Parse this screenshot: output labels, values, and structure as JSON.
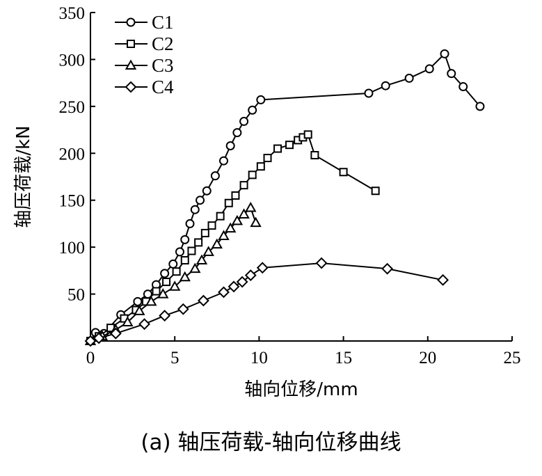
{
  "caption": "(a) 轴压荷载-轴向位移曲线",
  "chart_data": {
    "type": "line",
    "title": "",
    "xlabel": "轴向位移/mm",
    "ylabel": "轴压荷载/kN",
    "xlim": [
      0,
      25
    ],
    "ylim": [
      0,
      350
    ],
    "xticks": [
      0,
      5,
      10,
      15,
      20,
      25
    ],
    "yticks": [
      50,
      100,
      150,
      200,
      250,
      300,
      350
    ],
    "legend_position": "top-left",
    "grid": false,
    "series": [
      {
        "name": "C1",
        "marker": "circle",
        "x": [
          0,
          0.3,
          0.8,
          1.8,
          2.8,
          3.4,
          3.9,
          4.4,
          4.9,
          5.3,
          5.6,
          5.9,
          6.2,
          6.5,
          6.9,
          7.4,
          7.9,
          8.3,
          8.7,
          9.1,
          9.6,
          10.1,
          16.5,
          17.5,
          18.9,
          20.1,
          21.0,
          21.4,
          22.1,
          23.1
        ],
        "y": [
          0,
          9,
          8,
          28,
          42,
          50,
          60,
          72,
          82,
          95,
          108,
          125,
          140,
          150,
          160,
          176,
          192,
          208,
          222,
          234,
          246,
          257,
          264,
          272,
          280,
          290,
          306,
          285,
          271,
          250
        ]
      },
      {
        "name": "C2",
        "marker": "square",
        "x": [
          0,
          0.5,
          1.2,
          2.0,
          2.7,
          3.3,
          3.9,
          4.5,
          5.1,
          5.6,
          6.0,
          6.4,
          6.8,
          7.2,
          7.7,
          8.2,
          8.6,
          9.1,
          9.6,
          10.1,
          10.5,
          11.1,
          11.8,
          12.3,
          12.6,
          12.9,
          13.3,
          15.0,
          16.9
        ],
        "y": [
          0,
          5,
          14,
          24,
          33,
          42,
          53,
          63,
          74,
          86,
          96,
          105,
          115,
          123,
          133,
          147,
          155,
          166,
          177,
          186,
          195,
          205,
          209,
          214,
          217,
          220,
          198,
          180,
          160
        ]
      },
      {
        "name": "C3",
        "marker": "triangle",
        "x": [
          0,
          0.7,
          1.5,
          2.2,
          2.9,
          3.6,
          4.3,
          5.0,
          5.6,
          6.2,
          6.6,
          7.0,
          7.5,
          7.9,
          8.3,
          8.7,
          9.1,
          9.5,
          9.8
        ],
        "y": [
          0,
          5,
          12,
          20,
          32,
          42,
          50,
          58,
          68,
          77,
          86,
          95,
          103,
          112,
          120,
          128,
          135,
          142,
          126
        ]
      },
      {
        "name": "C4",
        "marker": "diamond",
        "x": [
          0,
          0.5,
          1.5,
          3.2,
          4.4,
          5.5,
          6.7,
          7.9,
          8.5,
          9.0,
          9.5,
          10.2,
          13.7,
          17.6,
          20.9
        ],
        "y": [
          0,
          3,
          8,
          18,
          27,
          34,
          43,
          52,
          58,
          63,
          70,
          78,
          83,
          77,
          65
        ]
      }
    ]
  }
}
